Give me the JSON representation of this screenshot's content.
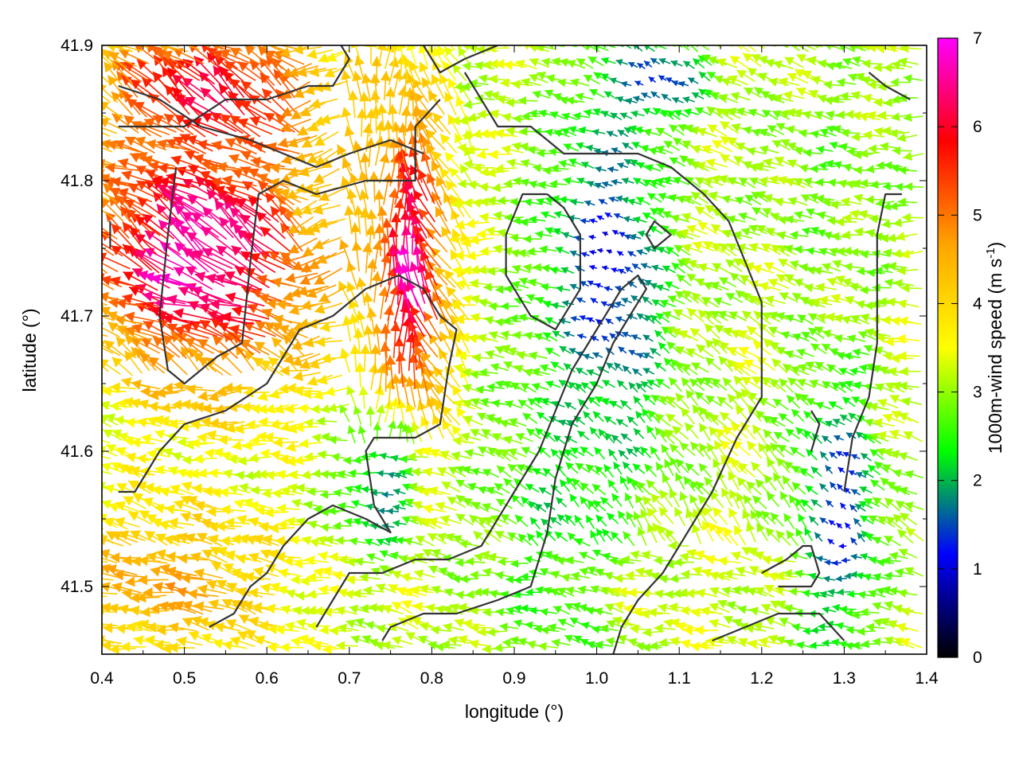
{
  "chart_data": {
    "type": "vector-field",
    "xlabel": "longitude (°)",
    "ylabel": "latitude (°)",
    "xlim": [
      0.4,
      1.4
    ],
    "ylim": [
      41.45,
      41.9
    ],
    "xticks": [
      "0.4",
      "0.5",
      "0.6",
      "0.7",
      "0.8",
      "0.9",
      "1.0",
      "1.1",
      "1.2",
      "1.3",
      "1.4"
    ],
    "xtick_values": [
      0.4,
      0.5,
      0.6,
      0.7,
      0.8,
      0.9,
      1.0,
      1.1,
      1.2,
      1.3,
      1.4
    ],
    "yticks": [
      "41.5",
      "41.6",
      "41.7",
      "41.8",
      "41.9"
    ],
    "ytick_values": [
      41.5,
      41.6,
      41.7,
      41.8,
      41.9
    ],
    "colorbar": {
      "label": "1000m-wind speed (m s",
      "label_superscript": "-1",
      "label_suffix": ")",
      "range": [
        0,
        7
      ],
      "ticks": [
        "0",
        "1",
        "2",
        "3",
        "4",
        "5",
        "6",
        "7"
      ],
      "tick_values": [
        0,
        1,
        2,
        3,
        4,
        5,
        6,
        7
      ],
      "colors": [
        "#000000",
        "#0000ff",
        "#00ff00",
        "#ffff00",
        "#ffa500",
        "#ff0000",
        "#ff00ff"
      ]
    },
    "wind_field": {
      "grid_spacing_deg": 0.021,
      "direction": "mostly from east/south-east (arrows pointing west/north-west)",
      "speed_regions": [
        {
          "center": [
            0.54,
            41.74
          ],
          "speed": 6.8,
          "spread": [
            0.14,
            0.09
          ]
        },
        {
          "center": [
            0.78,
            41.72
          ],
          "speed": 6.6,
          "spread": [
            0.05,
            0.12
          ]
        },
        {
          "center": [
            0.55,
            41.86
          ],
          "speed": 6.0,
          "spread": [
            0.14,
            0.05
          ]
        },
        {
          "center": [
            1.02,
            41.72
          ],
          "speed": 1.0,
          "spread": [
            0.07,
            0.13
          ]
        },
        {
          "center": [
            1.3,
            41.55
          ],
          "speed": 1.2,
          "spread": [
            0.05,
            0.1
          ]
        },
        {
          "center": [
            0.75,
            41.57
          ],
          "speed": 1.6,
          "spread": [
            0.05,
            0.05
          ]
        },
        {
          "center": [
            1.08,
            41.87
          ],
          "speed": 1.3,
          "spread": [
            0.06,
            0.03
          ]
        },
        {
          "center": [
            0.98,
            41.55
          ],
          "speed": 2.2,
          "spread": [
            0.1,
            0.12
          ]
        },
        {
          "center": [
            0.5,
            41.5
          ],
          "speed": 4.6,
          "spread": [
            0.14,
            0.06
          ]
        },
        {
          "center": [
            1.12,
            41.5
          ],
          "speed": 3.3,
          "spread": [
            0.12,
            0.05
          ]
        },
        {
          "center": [
            1.3,
            41.8
          ],
          "speed": 2.8,
          "spread": [
            0.1,
            0.08
          ]
        }
      ]
    },
    "contours": [
      [
        [
          0.42,
          41.87
        ],
        [
          0.47,
          41.86
        ],
        [
          0.52,
          41.84
        ],
        [
          0.58,
          41.83
        ],
        [
          0.62,
          41.82
        ],
        [
          0.66,
          41.81
        ],
        [
          0.7,
          41.82
        ],
        [
          0.75,
          41.83
        ],
        [
          0.79,
          41.82
        ]
      ],
      [
        [
          0.42,
          41.84
        ],
        [
          0.47,
          41.84
        ],
        [
          0.5,
          41.84
        ],
        [
          0.55,
          41.86
        ],
        [
          0.6,
          41.86
        ],
        [
          0.65,
          41.87
        ],
        [
          0.68,
          41.87
        ],
        [
          0.7,
          41.89
        ],
        [
          0.69,
          41.9
        ]
      ],
      [
        [
          0.79,
          41.9
        ],
        [
          0.81,
          41.88
        ],
        [
          0.84,
          41.89
        ],
        [
          0.88,
          41.9
        ]
      ],
      [
        [
          0.41,
          41.77
        ],
        [
          0.41,
          41.75
        ]
      ],
      [
        [
          0.49,
          41.81
        ],
        [
          0.48,
          41.76
        ],
        [
          0.47,
          41.7
        ],
        [
          0.48,
          41.66
        ],
        [
          0.5,
          41.65
        ],
        [
          0.54,
          41.67
        ],
        [
          0.57,
          41.68
        ],
        [
          0.58,
          41.74
        ],
        [
          0.59,
          41.79
        ],
        [
          0.62,
          41.8
        ],
        [
          0.66,
          41.79
        ],
        [
          0.72,
          41.8
        ],
        [
          0.78,
          41.8
        ],
        [
          0.78,
          41.84
        ],
        [
          0.81,
          41.86
        ]
      ],
      [
        [
          0.42,
          41.57
        ],
        [
          0.44,
          41.57
        ],
        [
          0.47,
          41.6
        ],
        [
          0.5,
          41.62
        ],
        [
          0.55,
          41.63
        ],
        [
          0.6,
          41.65
        ],
        [
          0.64,
          41.69
        ],
        [
          0.68,
          41.7
        ],
        [
          0.72,
          41.72
        ],
        [
          0.76,
          41.73
        ],
        [
          0.79,
          41.72
        ],
        [
          0.81,
          41.7
        ],
        [
          0.83,
          41.69
        ],
        [
          0.82,
          41.66
        ],
        [
          0.81,
          41.62
        ],
        [
          0.78,
          41.61
        ],
        [
          0.73,
          41.61
        ],
        [
          0.72,
          41.6
        ],
        [
          0.73,
          41.56
        ],
        [
          0.75,
          41.54
        ],
        [
          0.72,
          41.55
        ],
        [
          0.68,
          41.56
        ],
        [
          0.65,
          41.55
        ],
        [
          0.62,
          41.53
        ],
        [
          0.6,
          41.51
        ],
        [
          0.58,
          41.5
        ],
        [
          0.56,
          41.48
        ],
        [
          0.53,
          41.47
        ]
      ],
      [
        [
          0.66,
          41.47
        ],
        [
          0.68,
          41.49
        ],
        [
          0.7,
          41.51
        ],
        [
          0.74,
          41.51
        ],
        [
          0.78,
          41.52
        ],
        [
          0.82,
          41.52
        ],
        [
          0.86,
          41.53
        ],
        [
          0.9,
          41.57
        ],
        [
          0.93,
          41.6
        ],
        [
          0.95,
          41.63
        ],
        [
          0.97,
          41.66
        ],
        [
          1.0,
          41.69
        ],
        [
          1.03,
          41.72
        ],
        [
          1.05,
          41.73
        ],
        [
          1.06,
          41.72
        ],
        [
          1.04,
          41.7
        ],
        [
          1.02,
          41.68
        ],
        [
          1.0,
          41.65
        ],
        [
          0.97,
          41.62
        ],
        [
          0.95,
          41.58
        ],
        [
          0.94,
          41.54
        ],
        [
          0.92,
          41.5
        ],
        [
          0.88,
          41.49
        ],
        [
          0.83,
          41.48
        ],
        [
          0.79,
          41.48
        ],
        [
          0.75,
          41.47
        ],
        [
          0.74,
          41.46
        ]
      ],
      [
        [
          0.84,
          41.88
        ],
        [
          0.86,
          41.86
        ],
        [
          0.88,
          41.84
        ],
        [
          0.92,
          41.84
        ],
        [
          0.96,
          41.82
        ],
        [
          1.0,
          41.82
        ],
        [
          1.05,
          41.82
        ],
        [
          1.09,
          41.81
        ],
        [
          1.13,
          41.79
        ],
        [
          1.16,
          41.77
        ],
        [
          1.18,
          41.74
        ],
        [
          1.2,
          41.71
        ],
        [
          1.2,
          41.68
        ],
        [
          1.2,
          41.64
        ],
        [
          1.17,
          41.61
        ],
        [
          1.14,
          41.57
        ],
        [
          1.11,
          41.54
        ],
        [
          1.08,
          41.51
        ],
        [
          1.05,
          41.49
        ],
        [
          1.03,
          41.47
        ],
        [
          1.02,
          41.45
        ]
      ],
      [
        [
          0.94,
          41.79
        ],
        [
          0.91,
          41.79
        ],
        [
          0.89,
          41.76
        ],
        [
          0.89,
          41.73
        ],
        [
          0.92,
          41.7
        ],
        [
          0.95,
          41.69
        ],
        [
          0.98,
          41.72
        ],
        [
          0.98,
          41.76
        ],
        [
          0.96,
          41.78
        ],
        [
          0.94,
          41.79
        ]
      ],
      [
        [
          1.06,
          41.76
        ],
        [
          1.07,
          41.77
        ],
        [
          1.09,
          41.76
        ],
        [
          1.07,
          41.75
        ],
        [
          1.06,
          41.76
        ]
      ],
      [
        [
          1.14,
          41.46
        ],
        [
          1.18,
          41.47
        ],
        [
          1.22,
          41.48
        ],
        [
          1.27,
          41.48
        ],
        [
          1.3,
          41.46
        ]
      ],
      [
        [
          1.2,
          41.51
        ],
        [
          1.23,
          41.52
        ],
        [
          1.25,
          41.53
        ],
        [
          1.26,
          41.53
        ],
        [
          1.27,
          41.51
        ],
        [
          1.26,
          41.5
        ],
        [
          1.24,
          41.5
        ],
        [
          1.22,
          41.5
        ]
      ],
      [
        [
          1.3,
          41.57
        ],
        [
          1.31,
          41.61
        ],
        [
          1.33,
          41.64
        ],
        [
          1.34,
          41.68
        ],
        [
          1.34,
          41.72
        ],
        [
          1.34,
          41.76
        ],
        [
          1.35,
          41.79
        ],
        [
          1.37,
          41.79
        ]
      ],
      [
        [
          1.26,
          41.6
        ],
        [
          1.27,
          41.62
        ],
        [
          1.26,
          41.63
        ]
      ],
      [
        [
          1.33,
          41.88
        ],
        [
          1.35,
          41.87
        ],
        [
          1.38,
          41.86
        ]
      ]
    ]
  }
}
